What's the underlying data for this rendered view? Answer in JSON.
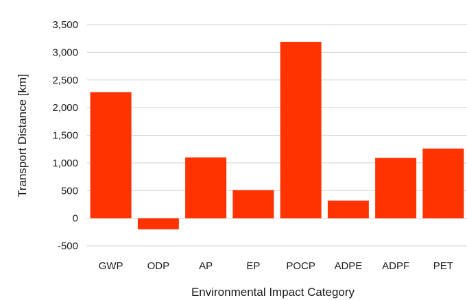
{
  "chart_data": {
    "type": "bar",
    "categories": [
      "GWP",
      "ODP",
      "AP",
      "EP",
      "POCP",
      "ADPE",
      "ADPF",
      "PET"
    ],
    "values": [
      2280,
      -200,
      1100,
      510,
      3190,
      320,
      1090,
      1260
    ],
    "xlabel": "Environmental Impact Category",
    "ylabel": "Transport Distance [km]",
    "ylim": [
      -500,
      3500
    ],
    "yticks": [
      "-500",
      "0",
      "500",
      "1,000",
      "1,500",
      "2,000",
      "2,500",
      "3,000",
      "3,500"
    ],
    "ytick_values": [
      -500,
      0,
      500,
      1000,
      1500,
      2000,
      2500,
      3000,
      3500
    ],
    "grid": true,
    "bar_color": "#ff3300",
    "grid_color": "#d0d0d0"
  }
}
